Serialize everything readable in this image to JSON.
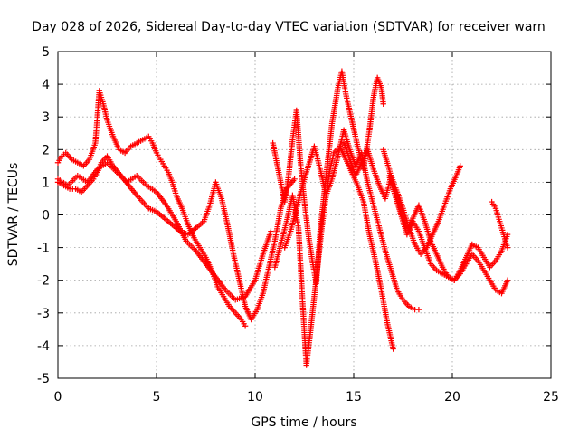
{
  "chart_data": {
    "type": "scatter",
    "title": "Day 028 of 2026, Sidereal Day-to-day VTEC variation (SDTVAR) for receiver warn",
    "xlabel": "GPS time / hours",
    "ylabel": "SDTVAR / TECUs",
    "xlim": [
      0,
      25
    ],
    "ylim": [
      -5,
      5
    ],
    "x_ticks": [
      0,
      5,
      10,
      15,
      20,
      25
    ],
    "y_ticks": [
      -5,
      -4,
      -3,
      -2,
      -1,
      0,
      1,
      2,
      3,
      4,
      5
    ],
    "x_tick_labels": [
      "0",
      "5",
      "10",
      "15",
      "20",
      "25"
    ],
    "y_tick_labels": [
      "-5",
      "-4",
      "-3",
      "-2",
      "-1",
      "0",
      "1",
      "2",
      "3",
      "4",
      "5"
    ],
    "grid": true,
    "marker": "+",
    "color": "#ff0000",
    "series": [
      {
        "x": [
          0.0,
          0.3,
          0.6,
          0.9,
          1.2,
          1.5,
          1.8,
          2.0,
          2.2,
          2.5,
          2.8,
          3.2,
          3.6,
          4.0,
          4.3,
          4.6,
          5.0,
          5.4,
          5.8,
          6.2,
          6.6,
          7.0,
          7.4,
          7.7,
          8.0,
          8.3,
          8.6,
          8.9,
          9.2,
          9.5,
          9.8,
          10.1,
          10.4,
          10.7,
          11.0,
          11.3,
          11.6,
          12.0
        ],
        "y": [
          1.0,
          0.9,
          0.8,
          0.8,
          0.7,
          0.9,
          1.1,
          1.3,
          1.6,
          1.8,
          1.5,
          1.2,
          0.9,
          0.6,
          0.4,
          0.2,
          0.1,
          -0.1,
          -0.3,
          -0.5,
          -0.6,
          -0.4,
          -0.2,
          0.3,
          1.0,
          0.5,
          -0.3,
          -1.2,
          -2.0,
          -2.8,
          -3.2,
          -2.9,
          -2.4,
          -1.6,
          -0.8,
          0.2,
          0.8,
          1.1
        ]
      },
      {
        "x": [
          0.0,
          0.2,
          0.4,
          0.7,
          1.0,
          1.3,
          1.6,
          1.9,
          2.0,
          2.1,
          2.3,
          2.5,
          2.8,
          3.1,
          3.4,
          3.7,
          4.0,
          4.3,
          4.6,
          4.8,
          5.0,
          5.2,
          5.4,
          5.6,
          5.8,
          6.0,
          6.3,
          6.6,
          6.9,
          7.2,
          7.5,
          7.8,
          8.1,
          8.4,
          8.7,
          9.0,
          9.3,
          9.5
        ],
        "y": [
          1.6,
          1.8,
          1.9,
          1.7,
          1.6,
          1.5,
          1.7,
          2.2,
          3.0,
          3.8,
          3.4,
          2.9,
          2.4,
          2.0,
          1.9,
          2.1,
          2.2,
          2.3,
          2.4,
          2.2,
          1.9,
          1.7,
          1.5,
          1.3,
          1.0,
          0.6,
          0.2,
          -0.3,
          -0.7,
          -1.0,
          -1.3,
          -1.7,
          -2.2,
          -2.5,
          -2.8,
          -3.0,
          -3.2,
          -3.4
        ]
      },
      {
        "x": [
          0.0,
          0.5,
          1.0,
          1.5,
          2.0,
          2.5,
          3.0,
          3.5,
          4.0,
          4.5,
          5.0,
          5.5,
          6.0,
          6.5,
          7.0,
          7.5,
          8.0,
          8.5,
          9.0,
          9.5,
          10.0,
          10.4,
          10.8
        ],
        "y": [
          1.1,
          0.9,
          1.2,
          1.0,
          1.4,
          1.6,
          1.3,
          1.0,
          1.2,
          0.9,
          0.7,
          0.3,
          -0.2,
          -0.8,
          -1.1,
          -1.5,
          -1.9,
          -2.3,
          -2.6,
          -2.5,
          -2.0,
          -1.2,
          -0.5
        ]
      },
      {
        "x": [
          10.9,
          11.1,
          11.3,
          11.5,
          11.7,
          11.9,
          12.1,
          12.3,
          12.5,
          12.7,
          12.9,
          13.1,
          13.3,
          13.6,
          13.9,
          14.2,
          14.4,
          14.6,
          14.9,
          15.2,
          15.5,
          15.8,
          16.0,
          16.2,
          16.4,
          16.5
        ],
        "y": [
          2.2,
          1.6,
          1.0,
          0.4,
          1.2,
          2.3,
          3.2,
          1.6,
          0.4,
          -0.6,
          -1.4,
          -2.1,
          -0.5,
          1.2,
          2.8,
          3.9,
          4.4,
          3.7,
          2.9,
          2.1,
          1.4,
          2.6,
          3.6,
          4.2,
          3.9,
          3.4
        ]
      },
      {
        "x": [
          11.0,
          11.3,
          11.6,
          11.9,
          12.2,
          12.4,
          12.6,
          12.8,
          13.0,
          13.2,
          13.4,
          13.6,
          13.8,
          14.0,
          14.3,
          14.6,
          14.9,
          15.2,
          15.5,
          15.8,
          16.1,
          16.4,
          16.7,
          17.0
        ],
        "y": [
          -1.6,
          -0.9,
          -0.2,
          0.6,
          -0.4,
          -2.6,
          -4.6,
          -3.6,
          -2.5,
          -1.4,
          -0.3,
          0.6,
          1.4,
          1.9,
          2.1,
          1.7,
          1.3,
          0.9,
          0.4,
          -0.6,
          -1.4,
          -2.3,
          -3.3,
          -4.1
        ]
      },
      {
        "x": [
          11.5,
          11.8,
          12.1,
          12.4,
          12.7,
          13.0,
          13.3,
          13.6,
          13.9,
          14.2,
          14.5,
          14.8,
          15.1,
          15.4,
          15.7,
          16.0,
          16.3,
          16.6,
          16.9,
          17.2,
          17.5,
          17.8,
          18.1,
          18.3
        ],
        "y": [
          -1.0,
          -0.5,
          0.2,
          0.9,
          1.5,
          2.1,
          1.4,
          0.6,
          1.1,
          1.8,
          2.6,
          2.0,
          1.5,
          1.9,
          1.0,
          0.3,
          -0.4,
          -1.1,
          -1.7,
          -2.3,
          -2.6,
          -2.8,
          -2.9,
          -2.9
        ]
      },
      {
        "x": [
          14.5,
          14.8,
          15.1,
          15.4,
          15.7,
          16.0,
          16.3,
          16.6,
          16.9,
          17.2,
          17.5,
          17.8,
          18.1,
          18.4,
          18.7,
          19.0,
          19.3,
          19.6,
          19.9,
          20.2,
          20.4
        ],
        "y": [
          2.2,
          1.7,
          1.2,
          1.6,
          2.0,
          1.4,
          0.9,
          0.5,
          1.2,
          0.7,
          0.2,
          -0.4,
          -0.9,
          -1.2,
          -1.0,
          -0.6,
          -0.2,
          0.3,
          0.8,
          1.2,
          1.5
        ]
      },
      {
        "x": [
          16.5,
          16.8,
          17.1,
          17.4,
          17.7,
          18.0,
          18.3,
          18.6,
          18.9,
          19.2,
          19.5,
          19.8,
          20.1,
          20.4,
          20.7,
          21.0,
          21.3,
          21.6,
          21.9,
          22.2,
          22.5,
          22.8
        ],
        "y": [
          2.0,
          1.4,
          0.6,
          0.0,
          -0.6,
          -0.2,
          -0.5,
          -1.0,
          -1.5,
          -1.7,
          -1.8,
          -1.9,
          -2.0,
          -1.8,
          -1.5,
          -1.2,
          -1.4,
          -1.7,
          -2.0,
          -2.3,
          -2.4,
          -2.0
        ]
      },
      {
        "x": [
          16.8,
          17.1,
          17.4,
          17.7,
          18.0,
          18.3,
          18.6,
          18.9,
          19.2,
          19.5,
          19.8,
          20.1,
          20.4,
          20.7,
          21.0,
          21.3,
          21.6,
          21.9,
          22.2,
          22.5,
          22.8
        ],
        "y": [
          1.2,
          0.6,
          0.1,
          -0.4,
          -0.1,
          0.3,
          -0.2,
          -0.8,
          -1.2,
          -1.6,
          -1.9,
          -2.0,
          -1.7,
          -1.3,
          -0.9,
          -1.0,
          -1.3,
          -1.6,
          -1.4,
          -1.1,
          -0.6
        ]
      },
      {
        "x": [
          22.0,
          22.2,
          22.4,
          22.6,
          22.8
        ],
        "y": [
          0.4,
          0.2,
          -0.2,
          -0.6,
          -1.0
        ]
      }
    ]
  }
}
